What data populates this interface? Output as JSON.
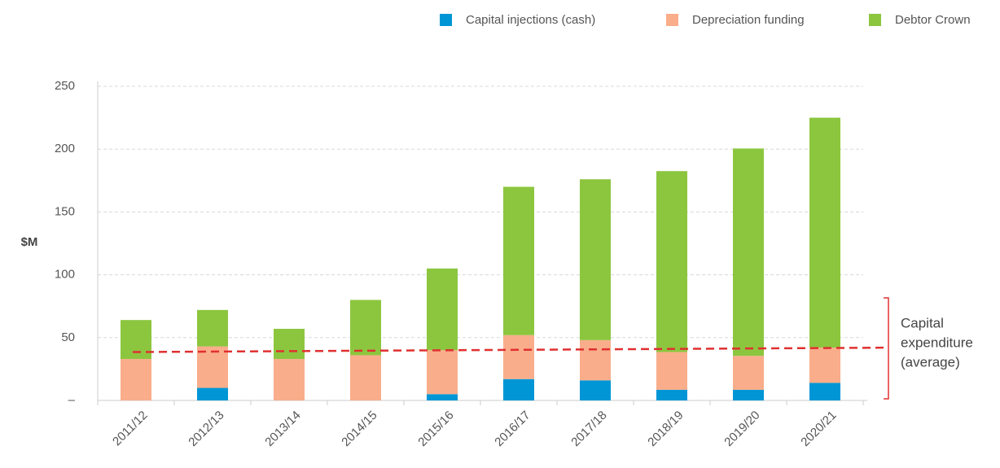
{
  "chart_data": {
    "type": "stacked_bar",
    "ylabel": "$M",
    "categories": [
      "2011/12",
      "2012/13",
      "2013/14",
      "2014/15",
      "2015/16",
      "2016/17",
      "2017/18",
      "2018/19",
      "2019/20",
      "2020/21"
    ],
    "series": [
      {
        "name": "Capital injections (cash)",
        "color": "#0096d6",
        "values": [
          0,
          10,
          0,
          0,
          5,
          17,
          16,
          8.5,
          8.5,
          14
        ]
      },
      {
        "name": "Depreciation funding",
        "color": "#f9ad8a",
        "values": [
          33,
          33,
          33,
          36,
          35,
          35,
          32,
          30,
          27,
          28
        ]
      },
      {
        "name": "Debtor Crown",
        "color": "#8cc63f",
        "values": [
          31,
          29,
          24,
          44,
          65,
          118,
          128,
          144,
          165,
          183
        ]
      }
    ],
    "ylim": [
      0,
      250
    ],
    "yticks": [
      {
        "value": 0,
        "label": "–"
      },
      50,
      100,
      150,
      200,
      250
    ],
    "grid": true,
    "legend": "top-right",
    "average_line": {
      "color": "#e03030",
      "values": [
        38.5,
        42
      ],
      "label_lines": [
        "Capital",
        "expenditure",
        "(average)"
      ]
    }
  }
}
